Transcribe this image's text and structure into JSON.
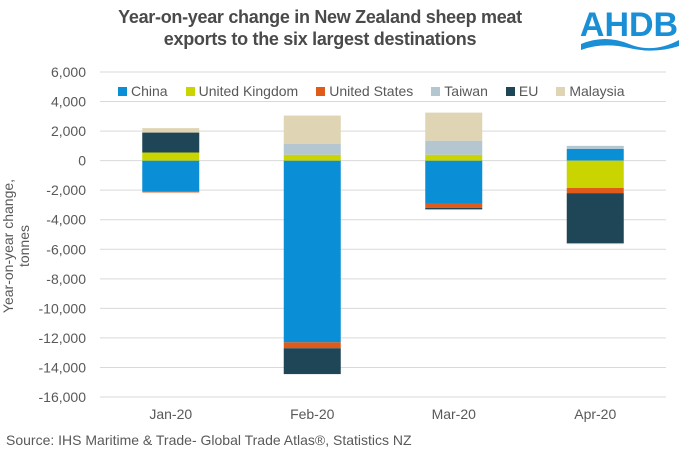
{
  "header": {
    "title_line1": "Year-on-year change in New Zealand sheep meat",
    "title_line2": "exports to the six largest destinations",
    "logo_text": "AHDB",
    "logo_color": "#1a8fd6"
  },
  "source": "Source: IHS Maritime & Trade- Global Trade Atlas®, Statistics NZ",
  "chart_data": {
    "type": "bar",
    "stacked": true,
    "title": "Year-on-year change in New Zealand sheep meat exports to the six largest destinations",
    "xlabel": "",
    "ylabel": "Year-on-year change, tonnes",
    "ylim": [
      -16000,
      6000
    ],
    "yticks": [
      6000,
      4000,
      2000,
      0,
      -2000,
      -4000,
      -6000,
      -8000,
      -10000,
      -12000,
      -14000,
      -16000
    ],
    "ytick_labels": [
      "6,000",
      "4,000",
      "2,000",
      "0",
      "-2,000",
      "-4,000",
      "-6,000",
      "-8,000",
      "-10,000",
      "-12,000",
      "-14,000",
      "-16,000"
    ],
    "grid": true,
    "legend_position": "top",
    "categories": [
      "Jan-20",
      "Feb-20",
      "Mar-20",
      "Apr-20"
    ],
    "series": [
      {
        "name": "China",
        "color": "#0a8fd6",
        "values": [
          -2100,
          -12300,
          -2900,
          800
        ]
      },
      {
        "name": "United Kingdom",
        "color": "#c9d400",
        "values": [
          550,
          400,
          400,
          -1850
        ]
      },
      {
        "name": "United States",
        "color": "#e05a1a",
        "values": [
          -50,
          -400,
          -300,
          -350
        ]
      },
      {
        "name": "Taiwan",
        "color": "#b4c6d0",
        "values": [
          0,
          750,
          950,
          200
        ]
      },
      {
        "name": "EU",
        "color": "#1f4656",
        "values": [
          1350,
          -1750,
          -100,
          -3400
        ]
      },
      {
        "name": "Malaysia",
        "color": "#dfd4b4",
        "values": [
          300,
          1900,
          1900,
          -50
        ]
      }
    ]
  }
}
